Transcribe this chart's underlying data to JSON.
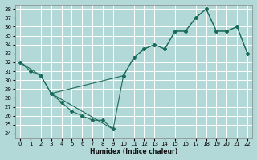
{
  "xlabel": "Humidex (Indice chaleur)",
  "background_color": "#b2d8d8",
  "grid_color": "#ffffff",
  "line_color": "#1a6b5a",
  "xlim": [
    -0.5,
    22.5
  ],
  "ylim": [
    23.5,
    38.5
  ],
  "xticks": [
    0,
    1,
    2,
    3,
    4,
    5,
    6,
    7,
    8,
    9,
    10,
    11,
    12,
    13,
    14,
    15,
    16,
    17,
    18,
    19,
    20,
    21,
    22
  ],
  "yticks": [
    24,
    25,
    26,
    27,
    28,
    29,
    30,
    31,
    32,
    33,
    34,
    35,
    36,
    37,
    38
  ],
  "line1_x": [
    0,
    1,
    2,
    3,
    4,
    5,
    6,
    7,
    8,
    9,
    10,
    11,
    12,
    13,
    14,
    15,
    16,
    17,
    18,
    19,
    20,
    21,
    22
  ],
  "line1_y": [
    32,
    31,
    30.5,
    28.5,
    27.5,
    26.5,
    26,
    25.5,
    25.5,
    24.5,
    30.5,
    32.5,
    33.5,
    34,
    33.5,
    35.5,
    35.5,
    37,
    38,
    35.5,
    35.5,
    36,
    33
  ],
  "line2_x": [
    0,
    2,
    3,
    10,
    11,
    12,
    13,
    14,
    15,
    16,
    17,
    18,
    19,
    20,
    21,
    22
  ],
  "line2_y": [
    32,
    30.5,
    28.5,
    30.5,
    32.5,
    33.5,
    34,
    33.5,
    35.5,
    35.5,
    37,
    38,
    35.5,
    35.5,
    36,
    33
  ],
  "line3_x": [
    3,
    9
  ],
  "line3_y": [
    28.5,
    24.5
  ]
}
